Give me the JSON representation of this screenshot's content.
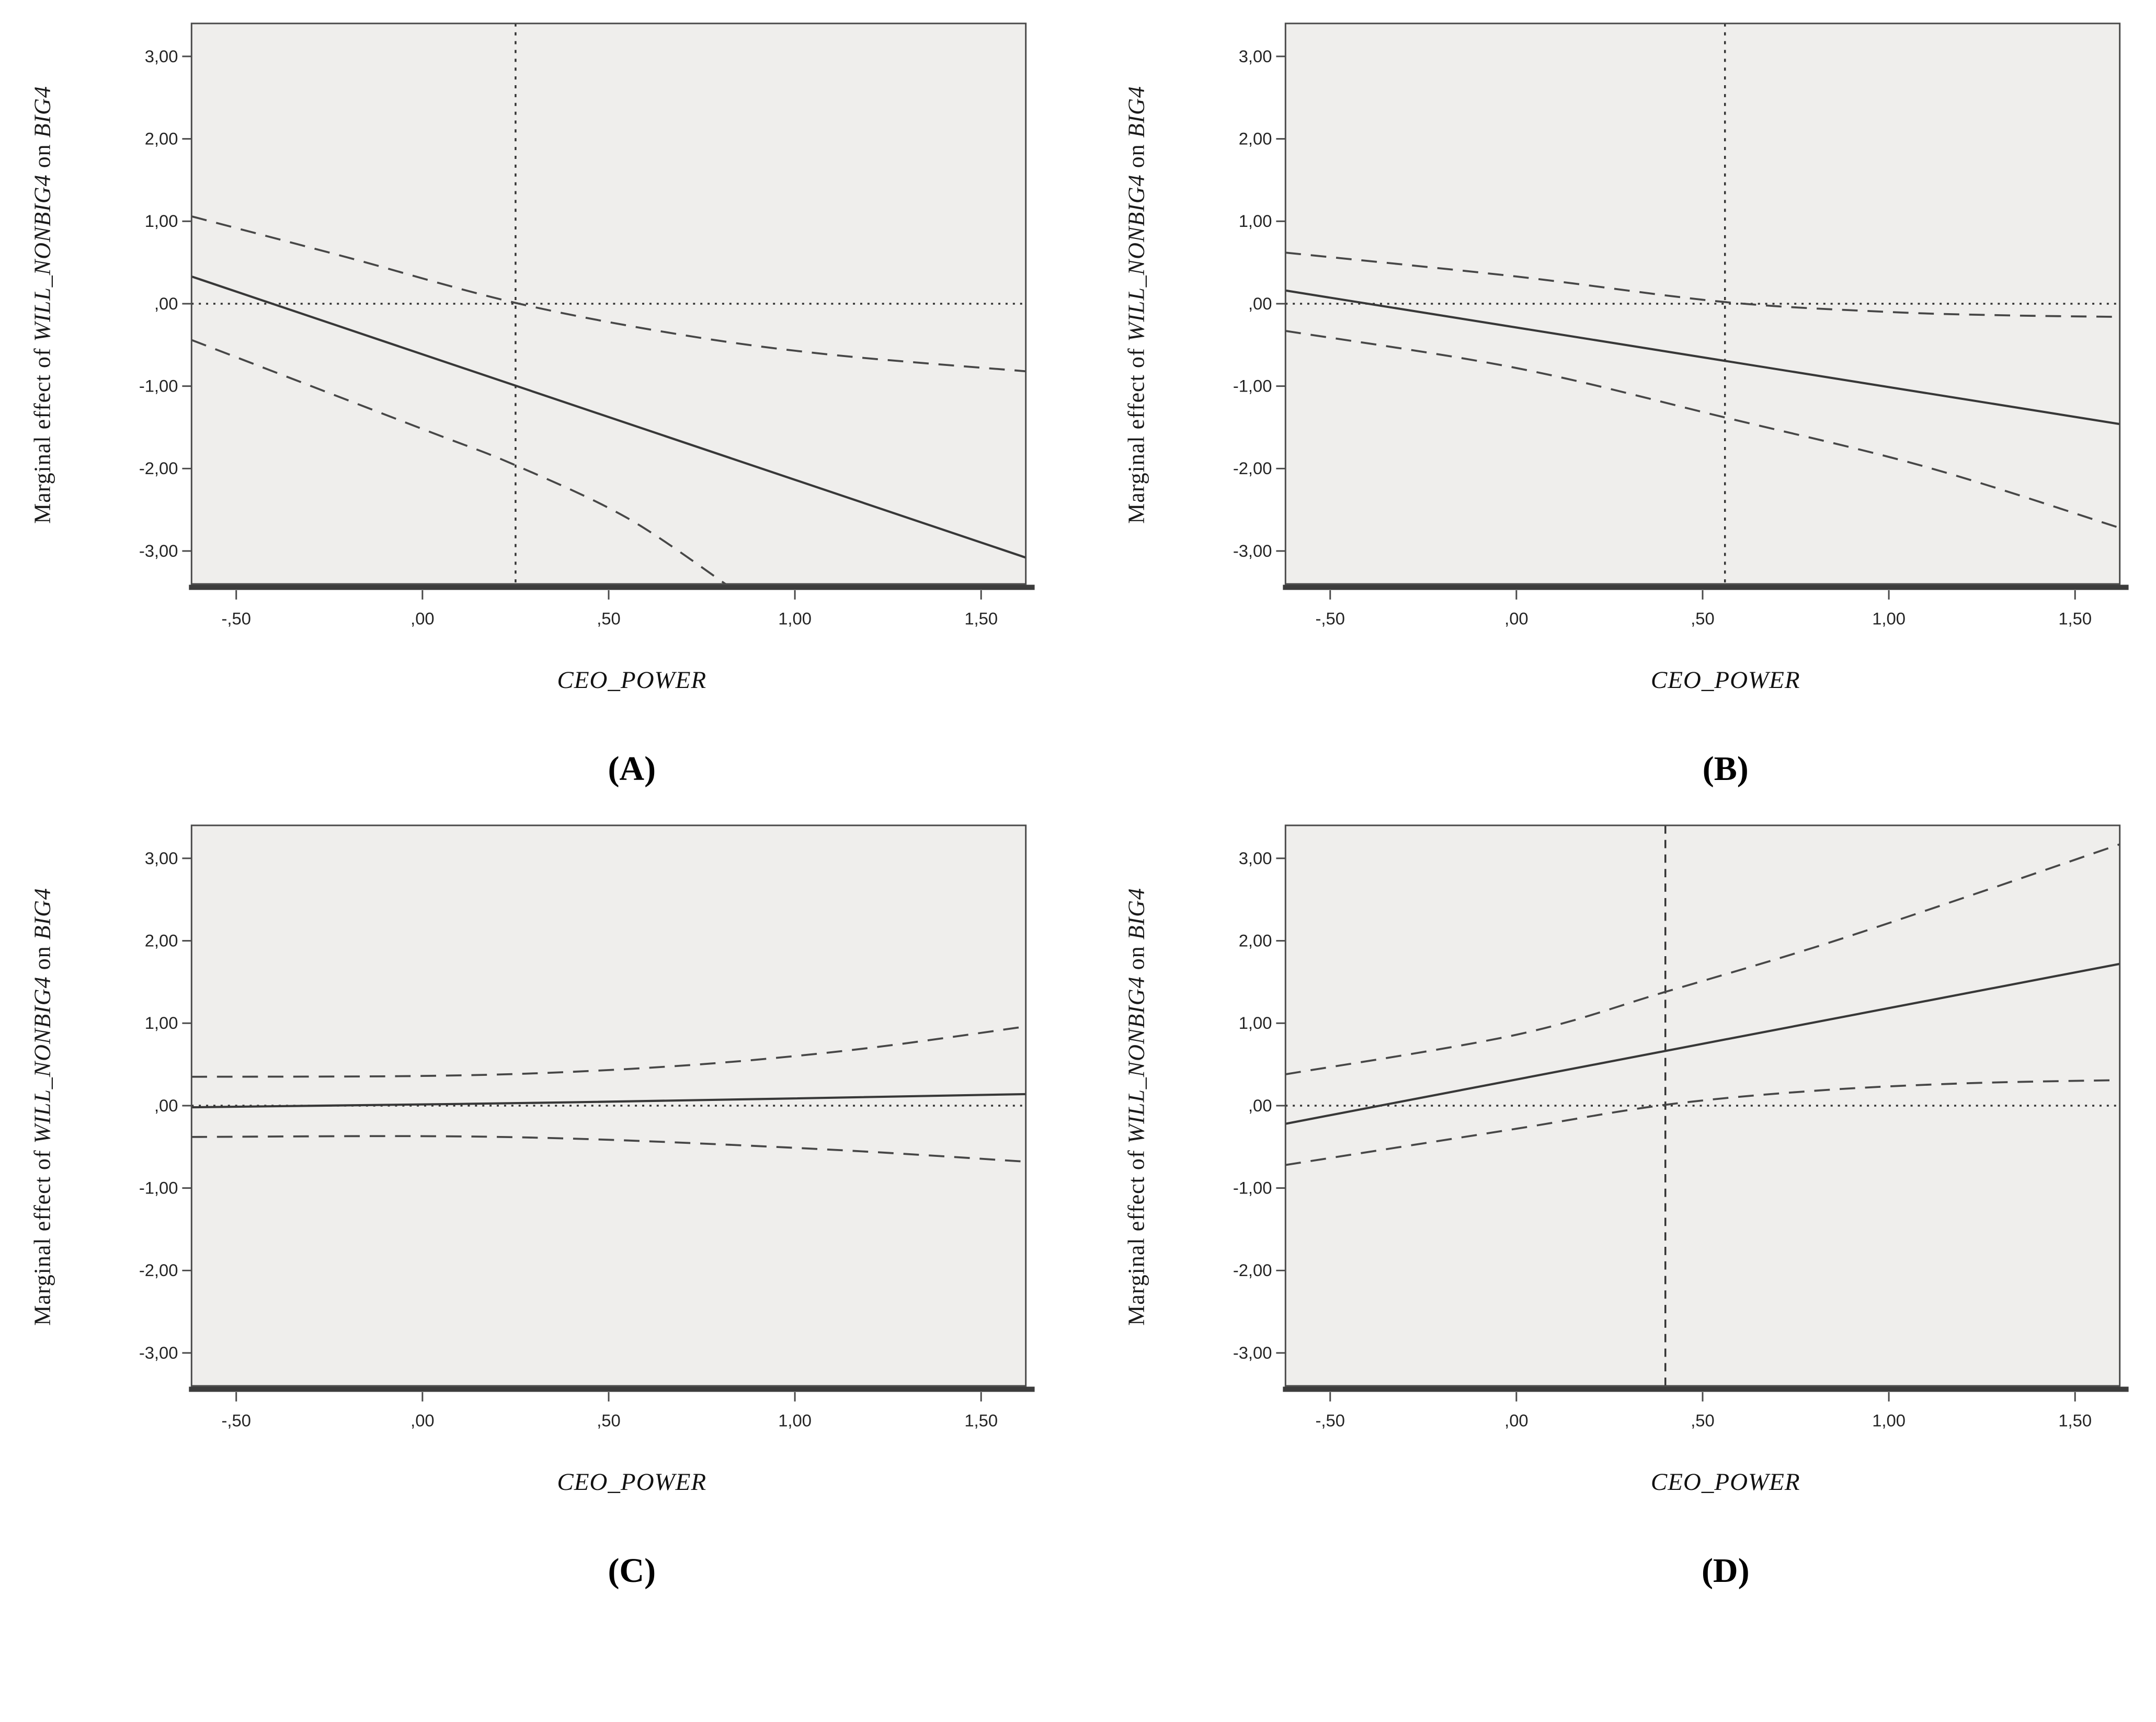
{
  "axis": {
    "xlabel": "CEO_POWER",
    "ylabel_parts": [
      {
        "text": "Marginal effect of ",
        "italic": false
      },
      {
        "text": "WILL_NONBIG4",
        "italic": true
      },
      {
        "text": " on ",
        "italic": false
      },
      {
        "text": "BIG4",
        "italic": true
      }
    ],
    "x": {
      "min": -0.62,
      "max": 1.62,
      "ticks": [
        {
          "v": -0.5,
          "label": "-,50"
        },
        {
          "v": 0.0,
          "label": ",00"
        },
        {
          "v": 0.5,
          "label": ",50"
        },
        {
          "v": 1.0,
          "label": "1,00"
        },
        {
          "v": 1.5,
          "label": "1,50"
        }
      ]
    },
    "y": {
      "min": -3.4,
      "max": 3.4,
      "ticks": [
        {
          "v": 3,
          "label": "3,00"
        },
        {
          "v": 2,
          "label": "2,00"
        },
        {
          "v": 1,
          "label": "1,00"
        },
        {
          "v": 0,
          "label": ",00"
        },
        {
          "v": -1,
          "label": "-1,00"
        },
        {
          "v": -2,
          "label": "-2,00"
        },
        {
          "v": -3,
          "label": "-3,00"
        }
      ]
    }
  },
  "colors": {
    "plot_bg": "#efeeec",
    "frame": "#4a4a4a",
    "axis_thick": "#3c3c3c",
    "solid_line": "#383838",
    "dashed_line": "#474747",
    "dotted_line": "#333333",
    "tick_text": "#242424"
  },
  "chart_data": [
    {
      "type": "line",
      "caption": "(A)",
      "hline": 0,
      "vline": 0.25,
      "vline_style": "dotted",
      "series": [
        {
          "name": "marginal_effect_estimate",
          "style": "solid",
          "points": [
            [
              -0.62,
              0.33
            ],
            [
              1.62,
              -3.08
            ]
          ]
        },
        {
          "name": "ci_upper",
          "style": "dashed",
          "points": [
            [
              -0.62,
              1.06
            ],
            [
              -0.2,
              0.56
            ],
            [
              0.25,
              0.01
            ],
            [
              0.7,
              -0.38
            ],
            [
              1.1,
              -0.62
            ],
            [
              1.62,
              -0.82
            ]
          ]
        },
        {
          "name": "ci_lower",
          "style": "dashed",
          "points": [
            [
              -0.62,
              -0.44
            ],
            [
              0.0,
              -1.52
            ],
            [
              0.25,
              -1.96
            ],
            [
              0.55,
              -2.6
            ],
            [
              0.82,
              -3.42
            ]
          ]
        }
      ]
    },
    {
      "type": "line",
      "caption": "(B)",
      "hline": 0,
      "vline": 0.56,
      "vline_style": "dotted",
      "series": [
        {
          "name": "marginal_effect_estimate",
          "style": "solid",
          "points": [
            [
              -0.62,
              0.16
            ],
            [
              1.62,
              -1.46
            ]
          ]
        },
        {
          "name": "ci_upper",
          "style": "dashed",
          "points": [
            [
              -0.62,
              0.62
            ],
            [
              0.0,
              0.33
            ],
            [
              0.56,
              0.02
            ],
            [
              1.0,
              -0.1
            ],
            [
              1.3,
              -0.14
            ],
            [
              1.62,
              -0.16
            ]
          ]
        },
        {
          "name": "ci_lower",
          "style": "dashed",
          "points": [
            [
              -0.62,
              -0.33
            ],
            [
              0.0,
              -0.78
            ],
            [
              0.56,
              -1.38
            ],
            [
              1.1,
              -1.98
            ],
            [
              1.62,
              -2.72
            ]
          ]
        }
      ]
    },
    {
      "type": "line",
      "caption": "(C)",
      "hline": 0,
      "vline": null,
      "vline_style": "none",
      "series": [
        {
          "name": "marginal_effect_estimate",
          "style": "solid",
          "points": [
            [
              -0.62,
              -0.02
            ],
            [
              0.4,
              0.04
            ],
            [
              1.62,
              0.14
            ]
          ]
        },
        {
          "name": "ci_upper",
          "style": "dashed",
          "points": [
            [
              -0.62,
              0.35
            ],
            [
              0.0,
              0.36
            ],
            [
              0.4,
              0.41
            ],
            [
              0.8,
              0.52
            ],
            [
              1.2,
              0.7
            ],
            [
              1.62,
              0.96
            ]
          ]
        },
        {
          "name": "ci_lower",
          "style": "dashed",
          "points": [
            [
              -0.62,
              -0.38
            ],
            [
              0.0,
              -0.37
            ],
            [
              0.4,
              -0.4
            ],
            [
              0.8,
              -0.47
            ],
            [
              1.2,
              -0.56
            ],
            [
              1.62,
              -0.68
            ]
          ]
        }
      ]
    },
    {
      "type": "line",
      "caption": "(D)",
      "hline": 0,
      "vline": 0.4,
      "vline_style": "dashed",
      "series": [
        {
          "name": "marginal_effect_estimate",
          "style": "solid",
          "points": [
            [
              -0.62,
              -0.22
            ],
            [
              1.62,
              1.72
            ]
          ]
        },
        {
          "name": "ci_upper",
          "style": "dashed",
          "points": [
            [
              -0.62,
              0.38
            ],
            [
              0.0,
              0.86
            ],
            [
              0.4,
              1.38
            ],
            [
              0.8,
              1.92
            ],
            [
              1.2,
              2.52
            ],
            [
              1.62,
              3.17
            ]
          ]
        },
        {
          "name": "ci_lower",
          "style": "dashed",
          "points": [
            [
              -0.62,
              -0.72
            ],
            [
              0.0,
              -0.28
            ],
            [
              0.4,
              0.01
            ],
            [
              0.8,
              0.18
            ],
            [
              1.2,
              0.27
            ],
            [
              1.62,
              0.31
            ]
          ]
        }
      ]
    }
  ]
}
